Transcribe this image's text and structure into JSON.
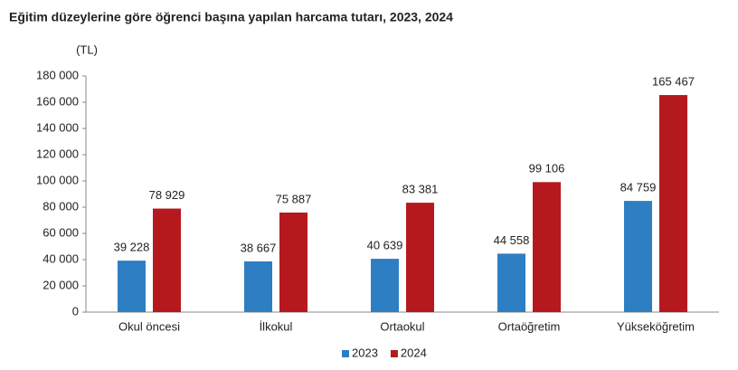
{
  "chart_data": {
    "type": "bar",
    "title": "Eğitim düzeylerine göre öğrenci başına yapılan harcama tutarı, 2023, 2024",
    "y_unit": "(TL)",
    "categories": [
      "Okul öncesi",
      "İlkokul",
      "Ortaokul",
      "Ortaöğretim",
      "Yükseköğretim"
    ],
    "series": [
      {
        "name": "2023",
        "color": "#2e7ec3",
        "values": [
          39228,
          38667,
          40639,
          44558,
          84759
        ],
        "value_labels": [
          "39 228",
          "38 667",
          "40 639",
          "44 558",
          "84 759"
        ]
      },
      {
        "name": "2024",
        "color": "#b5191e",
        "values": [
          78929,
          75887,
          83381,
          99106,
          165467
        ],
        "value_labels": [
          "78 929",
          "75 887",
          "83 381",
          "99 106",
          "165 467"
        ]
      }
    ],
    "ylim": [
      0,
      180000
    ],
    "yticks": [
      0,
      {
        "value": 20000,
        "label": "20 000"
      },
      {
        "value": 40000,
        "label": "40 000"
      },
      {
        "value": 60000,
        "label": "60 000"
      },
      {
        "value": 80000,
        "label": "80 000"
      },
      {
        "value": 100000,
        "label": "100 000"
      },
      {
        "value": 120000,
        "label": "120 000"
      },
      {
        "value": 140000,
        "label": "140 000"
      },
      {
        "value": 160000,
        "label": "160 000"
      },
      {
        "value": 180000,
        "label": "180 000"
      }
    ],
    "grid": false,
    "legend": "bottom"
  }
}
